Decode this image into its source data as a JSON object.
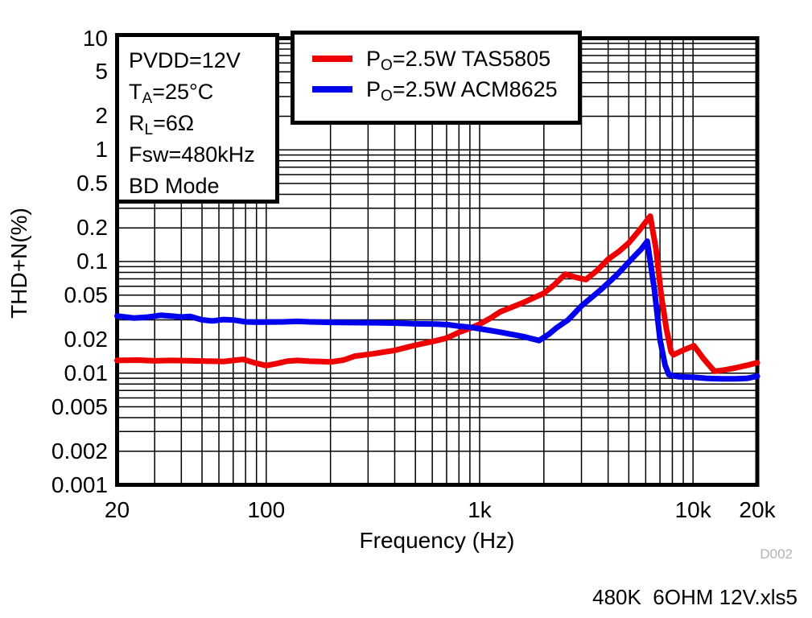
{
  "chart_data": {
    "type": "line",
    "title": "",
    "xlabel": "Frequency (Hz)",
    "ylabel": "THD+N(%)",
    "xscale": "log",
    "yscale": "log",
    "xlim": [
      20,
      20000
    ],
    "ylim": [
      0.001,
      10
    ],
    "grid": "full log-log minor grid, black lines on white",
    "legend_position": "top-center, boxed",
    "xticks": [
      {
        "v": 20,
        "label": "20"
      },
      {
        "v": 100,
        "label": "100"
      },
      {
        "v": 1000,
        "label": "1k"
      },
      {
        "v": 10000,
        "label": "10k"
      },
      {
        "v": 20000,
        "label": "20k"
      }
    ],
    "yticks": [
      {
        "v": 10,
        "label": "10"
      },
      {
        "v": 5,
        "label": "5"
      },
      {
        "v": 2,
        "label": "2"
      },
      {
        "v": 1,
        "label": "1"
      },
      {
        "v": 0.5,
        "label": "0.5"
      },
      {
        "v": 0.2,
        "label": "0.2"
      },
      {
        "v": 0.1,
        "label": "0.1"
      },
      {
        "v": 0.05,
        "label": "0.05"
      },
      {
        "v": 0.02,
        "label": "0.02"
      },
      {
        "v": 0.01,
        "label": "0.01"
      },
      {
        "v": 0.005,
        "label": "0.005"
      },
      {
        "v": 0.002,
        "label": "0.002"
      },
      {
        "v": 0.001,
        "label": "0.001"
      }
    ],
    "series": [
      {
        "name": "PO=2.5W TAS5805",
        "color": "#ee0000",
        "points": [
          [
            20,
            0.013
          ],
          [
            25,
            0.0131
          ],
          [
            30,
            0.0129
          ],
          [
            36,
            0.013
          ],
          [
            45,
            0.0129
          ],
          [
            56,
            0.0128
          ],
          [
            63,
            0.0127
          ],
          [
            70,
            0.013
          ],
          [
            78,
            0.0133
          ],
          [
            88,
            0.0124
          ],
          [
            100,
            0.0117
          ],
          [
            112,
            0.0122
          ],
          [
            125,
            0.0128
          ],
          [
            140,
            0.013
          ],
          [
            160,
            0.0128
          ],
          [
            180,
            0.0127
          ],
          [
            200,
            0.0126
          ],
          [
            230,
            0.0131
          ],
          [
            260,
            0.0142
          ],
          [
            315,
            0.0149
          ],
          [
            400,
            0.016
          ],
          [
            500,
            0.0178
          ],
          [
            630,
            0.0196
          ],
          [
            700,
            0.0206
          ],
          [
            800,
            0.0232
          ],
          [
            900,
            0.0252
          ],
          [
            1000,
            0.0275
          ],
          [
            1120,
            0.031
          ],
          [
            1250,
            0.0355
          ],
          [
            1600,
            0.0428
          ],
          [
            2000,
            0.052
          ],
          [
            2240,
            0.062
          ],
          [
            2520,
            0.077
          ],
          [
            2800,
            0.0725
          ],
          [
            3150,
            0.069
          ],
          [
            3550,
            0.083
          ],
          [
            4000,
            0.105
          ],
          [
            4500,
            0.123
          ],
          [
            5000,
            0.147
          ],
          [
            5600,
            0.19
          ],
          [
            6300,
            0.255
          ],
          [
            6700,
            0.13
          ],
          [
            7100,
            0.05
          ],
          [
            7500,
            0.025
          ],
          [
            7900,
            0.0155
          ],
          [
            8100,
            0.0146
          ],
          [
            9000,
            0.0161
          ],
          [
            10100,
            0.0176
          ],
          [
            11200,
            0.0135
          ],
          [
            12600,
            0.0104
          ],
          [
            14100,
            0.0107
          ],
          [
            16000,
            0.0112
          ],
          [
            18000,
            0.0118
          ],
          [
            20000,
            0.0124
          ]
        ]
      },
      {
        "name": "PO=2.5W ACM8625",
        "color": "#0000ee",
        "points": [
          [
            20,
            0.0325
          ],
          [
            24,
            0.0312
          ],
          [
            28,
            0.0318
          ],
          [
            32,
            0.033
          ],
          [
            36,
            0.0325
          ],
          [
            40,
            0.0318
          ],
          [
            44,
            0.0322
          ],
          [
            50,
            0.03
          ],
          [
            56,
            0.0294
          ],
          [
            63,
            0.0302
          ],
          [
            71,
            0.0299
          ],
          [
            80,
            0.0288
          ],
          [
            90,
            0.0286
          ],
          [
            100,
            0.0287
          ],
          [
            120,
            0.0288
          ],
          [
            140,
            0.0291
          ],
          [
            160,
            0.0288
          ],
          [
            200,
            0.0285
          ],
          [
            250,
            0.0284
          ],
          [
            320,
            0.0283
          ],
          [
            400,
            0.0281
          ],
          [
            500,
            0.0277
          ],
          [
            630,
            0.0275
          ],
          [
            710,
            0.0272
          ],
          [
            800,
            0.0264
          ],
          [
            900,
            0.0258
          ],
          [
            1000,
            0.025
          ],
          [
            1250,
            0.0233
          ],
          [
            1600,
            0.0213
          ],
          [
            1900,
            0.0196
          ],
          [
            2120,
            0.0225
          ],
          [
            2300,
            0.0256
          ],
          [
            2600,
            0.03
          ],
          [
            3000,
            0.04
          ],
          [
            3700,
            0.056
          ],
          [
            4400,
            0.076
          ],
          [
            5200,
            0.107
          ],
          [
            5700,
            0.128
          ],
          [
            6100,
            0.152
          ],
          [
            6600,
            0.055
          ],
          [
            7000,
            0.02
          ],
          [
            7400,
            0.0118
          ],
          [
            7700,
            0.0097
          ],
          [
            8500,
            0.0093
          ],
          [
            10000,
            0.0092
          ],
          [
            11500,
            0.009
          ],
          [
            13500,
            0.0089
          ],
          [
            16000,
            0.0089
          ],
          [
            18000,
            0.009
          ],
          [
            20000,
            0.0094
          ]
        ]
      }
    ]
  },
  "conditions": {
    "lines": [
      {
        "pre": "PVDD=12V",
        "sub": "",
        "post": ""
      },
      {
        "pre": "T",
        "sub": "A",
        "post": "=25°C"
      },
      {
        "pre": "R",
        "sub": "L",
        "post": "=6Ω"
      },
      {
        "pre": "Fsw=480kHz",
        "sub": "",
        "post": ""
      },
      {
        "pre": "BD Mode",
        "sub": "",
        "post": ""
      }
    ]
  },
  "legend": {
    "items": [
      {
        "pre": "P",
        "sub": "O",
        "post": "=2.5W TAS5805",
        "color": "#ee0000"
      },
      {
        "pre": "P",
        "sub": "O",
        "post": "=2.5W ACM8625",
        "color": "#0000ee"
      }
    ]
  },
  "footer": {
    "watermark": "D002",
    "filename": "480K  6OHM 12V.xls5"
  }
}
